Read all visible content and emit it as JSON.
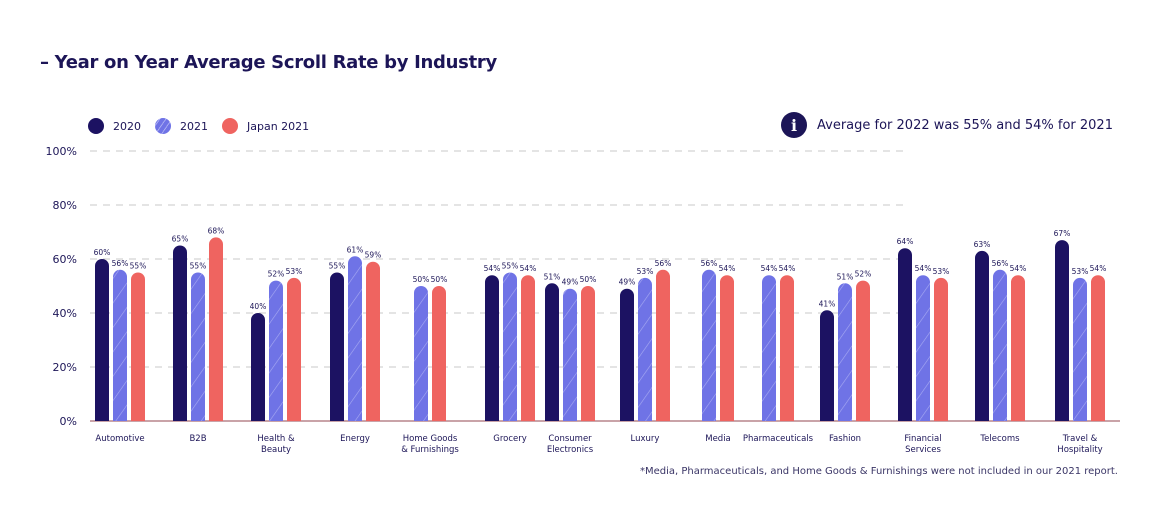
{
  "title": "– Year on Year Average Scroll Rate by Industry",
  "info_note": "Average for 2022 was 55% and 54% for 2021",
  "info_icon": "info-icon",
  "footnote": "*Media, Pharmaceuticals, and Home Goods & Furnishings were not included in our 2021 report.",
  "colors": {
    "2020": "#1c1262",
    "2021": "#6f73e6",
    "Japan 2021": "#ef6460",
    "grid": "#c8c8c8",
    "axis": "#c9a3a8"
  },
  "chart_data": {
    "type": "bar",
    "title": "– Year on Year Average Scroll Rate by Industry",
    "xlabel": "",
    "ylabel": "",
    "ylim": [
      0,
      100
    ],
    "yticks": [
      "0%",
      "20%",
      "40%",
      "60%",
      "80%",
      "100%"
    ],
    "grid": true,
    "legend_position": "top-left",
    "categories": [
      "Automotive",
      "B2B",
      "Health & Beauty",
      "Energy",
      "Home Goods & Furnishings",
      "Grocery",
      "Consumer Electronics",
      "Luxury",
      "Media",
      "Pharmaceuticals",
      "Fashion",
      "Financial Services",
      "Telecoms",
      "Travel & Hospitality"
    ],
    "category_lines": [
      [
        "Automotive"
      ],
      [
        "B2B"
      ],
      [
        "Health &",
        "Beauty"
      ],
      [
        "Energy"
      ],
      [
        "Home Goods",
        "& Furnishings"
      ],
      [
        "Grocery"
      ],
      [
        "Consumer",
        "Electronics"
      ],
      [
        "Luxury"
      ],
      [
        "Media"
      ],
      [
        "Pharmaceuticals"
      ],
      [
        "Fashion"
      ],
      [
        "Financial",
        "Services"
      ],
      [
        "Telecoms"
      ],
      [
        "Travel &",
        "Hospitality"
      ]
    ],
    "series": [
      {
        "name": "2020",
        "values": [
          60,
          65,
          40,
          55,
          null,
          54,
          51,
          49,
          null,
          null,
          41,
          64,
          63,
          67
        ]
      },
      {
        "name": "2021",
        "values": [
          56,
          55,
          52,
          61,
          50,
          55,
          49,
          53,
          56,
          54,
          51,
          54,
          56,
          53
        ]
      },
      {
        "name": "Japan 2021",
        "values": [
          55,
          68,
          53,
          59,
          50,
          54,
          50,
          56,
          54,
          54,
          52,
          53,
          54,
          54
        ]
      }
    ],
    "data_label_suffix": "%"
  }
}
